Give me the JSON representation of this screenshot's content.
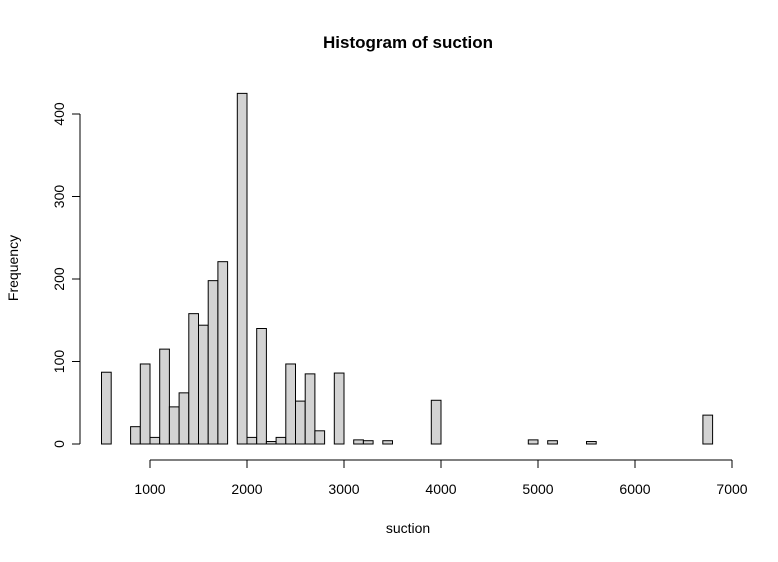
{
  "chart_data": {
    "type": "bar",
    "title": "Histogram of suction",
    "xlabel": "suction",
    "ylabel": "Frequency",
    "bin_width": 100,
    "xlim": [
      500,
      6800
    ],
    "ylim": [
      0,
      425
    ],
    "x_ticks": [
      1000,
      2000,
      3000,
      4000,
      5000,
      6000,
      7000
    ],
    "y_ticks": [
      0,
      100,
      200,
      300,
      400
    ],
    "bins": [
      {
        "start": 500,
        "end": 600,
        "count": 87
      },
      {
        "start": 800,
        "end": 900,
        "count": 21
      },
      {
        "start": 900,
        "end": 1000,
        "count": 97
      },
      {
        "start": 1000,
        "end": 1100,
        "count": 8
      },
      {
        "start": 1100,
        "end": 1200,
        "count": 115
      },
      {
        "start": 1200,
        "end": 1300,
        "count": 45
      },
      {
        "start": 1300,
        "end": 1400,
        "count": 62
      },
      {
        "start": 1400,
        "end": 1500,
        "count": 158
      },
      {
        "start": 1500,
        "end": 1600,
        "count": 144
      },
      {
        "start": 1600,
        "end": 1700,
        "count": 198
      },
      {
        "start": 1700,
        "end": 1800,
        "count": 221
      },
      {
        "start": 1900,
        "end": 2000,
        "count": 425
      },
      {
        "start": 2000,
        "end": 2100,
        "count": 8
      },
      {
        "start": 2100,
        "end": 2200,
        "count": 140
      },
      {
        "start": 2200,
        "end": 2300,
        "count": 3
      },
      {
        "start": 2300,
        "end": 2400,
        "count": 8
      },
      {
        "start": 2400,
        "end": 2500,
        "count": 97
      },
      {
        "start": 2500,
        "end": 2600,
        "count": 52
      },
      {
        "start": 2600,
        "end": 2700,
        "count": 85
      },
      {
        "start": 2700,
        "end": 2800,
        "count": 16
      },
      {
        "start": 2900,
        "end": 3000,
        "count": 86
      },
      {
        "start": 3100,
        "end": 3200,
        "count": 5
      },
      {
        "start": 3200,
        "end": 3300,
        "count": 4
      },
      {
        "start": 3400,
        "end": 3500,
        "count": 4
      },
      {
        "start": 3900,
        "end": 4000,
        "count": 53
      },
      {
        "start": 4900,
        "end": 5000,
        "count": 5
      },
      {
        "start": 5100,
        "end": 5200,
        "count": 4
      },
      {
        "start": 5500,
        "end": 5600,
        "count": 3
      },
      {
        "start": 6700,
        "end": 6800,
        "count": 35
      }
    ],
    "bar_fill": "#d3d3d3",
    "bar_stroke": "#000000",
    "grid": false,
    "legend": "none"
  }
}
